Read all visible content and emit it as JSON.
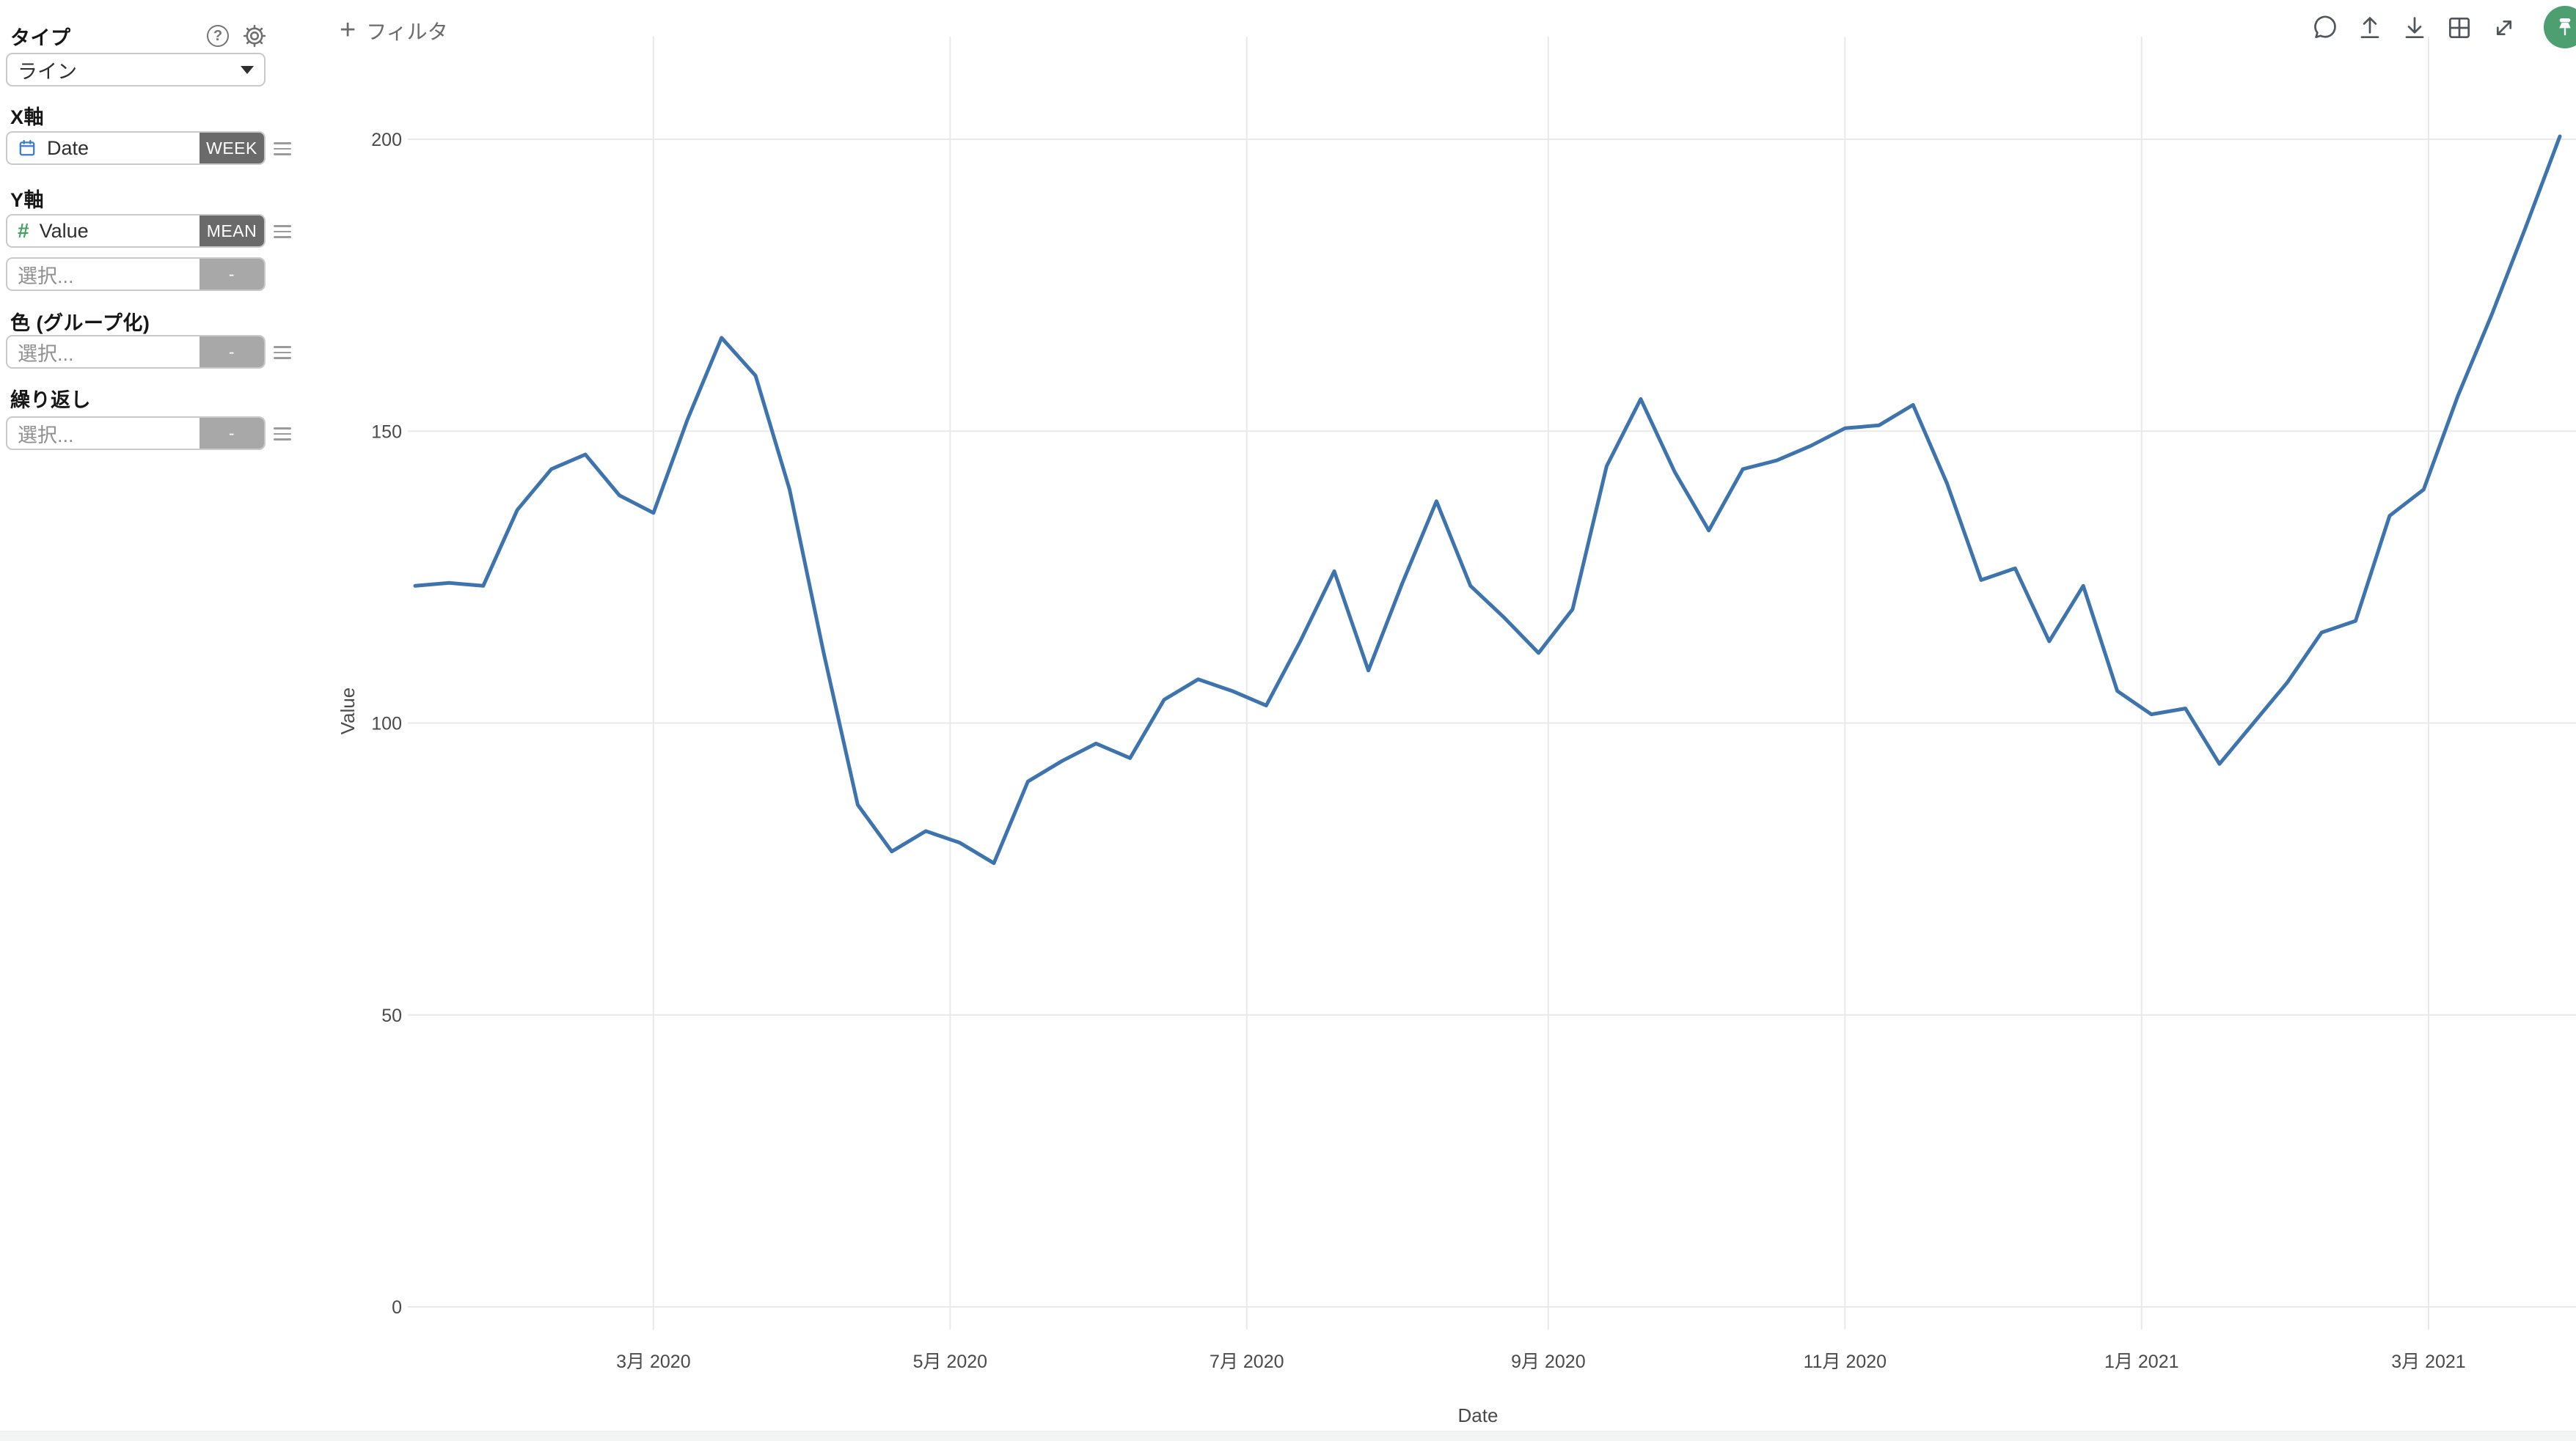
{
  "sidebar": {
    "type_label": "タイプ",
    "type_value": "ライン",
    "x_axis_label": "X軸",
    "x_field": {
      "name": "Date",
      "bucket": "WEEK"
    },
    "y_axis_label": "Y軸",
    "y_field": {
      "name": "Value",
      "agg": "MEAN"
    },
    "add_placeholder": "選択...",
    "empty_badge": "-",
    "color_label": "色 (グループ化)",
    "repeat_label": "繰り返し"
  },
  "toolbar": {
    "plus": "+",
    "add_filter": "フィルタ"
  },
  "colors": {
    "line": "#3e74ae",
    "grid": "#e9e9e9",
    "tick": "#4a4a4a",
    "avatar_green": "#4d9f72"
  },
  "chart_data": {
    "type": "line",
    "title": "",
    "xlabel": "Date",
    "ylabel": "Value",
    "x_unit": "week",
    "grid": true,
    "legend": "none",
    "ylim": [
      0,
      200
    ],
    "yticks": [
      0,
      50,
      100,
      150,
      200
    ],
    "x_ticks": [
      {
        "date": "2020-03-01",
        "label": "3月 2020"
      },
      {
        "date": "2020-05-01",
        "label": "5月 2020"
      },
      {
        "date": "2020-07-01",
        "label": "7月 2020"
      },
      {
        "date": "2020-09-01",
        "label": "9月 2020"
      },
      {
        "date": "2020-11-01",
        "label": "11月 2020"
      },
      {
        "date": "2021-01-01",
        "label": "1月 2021"
      },
      {
        "date": "2021-03-01",
        "label": "3月 2021"
      }
    ],
    "x": [
      "2020-01-12",
      "2020-01-19",
      "2020-01-26",
      "2020-02-02",
      "2020-02-09",
      "2020-02-16",
      "2020-02-23",
      "2020-03-01",
      "2020-03-08",
      "2020-03-15",
      "2020-03-22",
      "2020-03-29",
      "2020-04-05",
      "2020-04-12",
      "2020-04-19",
      "2020-04-26",
      "2020-05-03",
      "2020-05-10",
      "2020-05-17",
      "2020-05-24",
      "2020-05-31",
      "2020-06-07",
      "2020-06-14",
      "2020-06-21",
      "2020-06-28",
      "2020-07-05",
      "2020-07-12",
      "2020-07-19",
      "2020-07-26",
      "2020-08-02",
      "2020-08-09",
      "2020-08-16",
      "2020-08-23",
      "2020-08-30",
      "2020-09-06",
      "2020-09-13",
      "2020-09-20",
      "2020-09-27",
      "2020-10-04",
      "2020-10-11",
      "2020-10-18",
      "2020-10-25",
      "2020-11-01",
      "2020-11-08",
      "2020-11-15",
      "2020-11-22",
      "2020-11-29",
      "2020-12-06",
      "2020-12-13",
      "2020-12-20",
      "2020-12-27",
      "2021-01-03",
      "2021-01-10",
      "2021-01-17",
      "2021-01-24",
      "2021-01-31",
      "2021-02-07",
      "2021-02-14",
      "2021-02-21",
      "2021-02-28",
      "2021-03-07",
      "2021-03-14",
      "2021-03-21",
      "2021-03-28"
    ],
    "values": [
      123.5,
      124,
      123.5,
      136.5,
      143.5,
      146,
      139,
      136,
      152,
      166,
      159.5,
      140,
      112,
      86,
      78,
      81.5,
      79.5,
      76,
      90,
      93.5,
      96.5,
      94,
      104,
      107.5,
      105.5,
      103,
      114,
      126,
      109,
      124,
      138,
      123.5,
      118,
      112,
      119.5,
      144,
      155.5,
      143,
      133,
      143.5,
      145,
      147.5,
      150.5,
      151,
      154.5,
      141,
      124.5,
      126.5,
      114,
      123.5,
      105.5,
      101.5,
      102.5,
      93,
      100,
      107,
      115.5,
      117.5,
      135.5,
      140,
      156,
      170,
      185,
      200.5
    ]
  }
}
